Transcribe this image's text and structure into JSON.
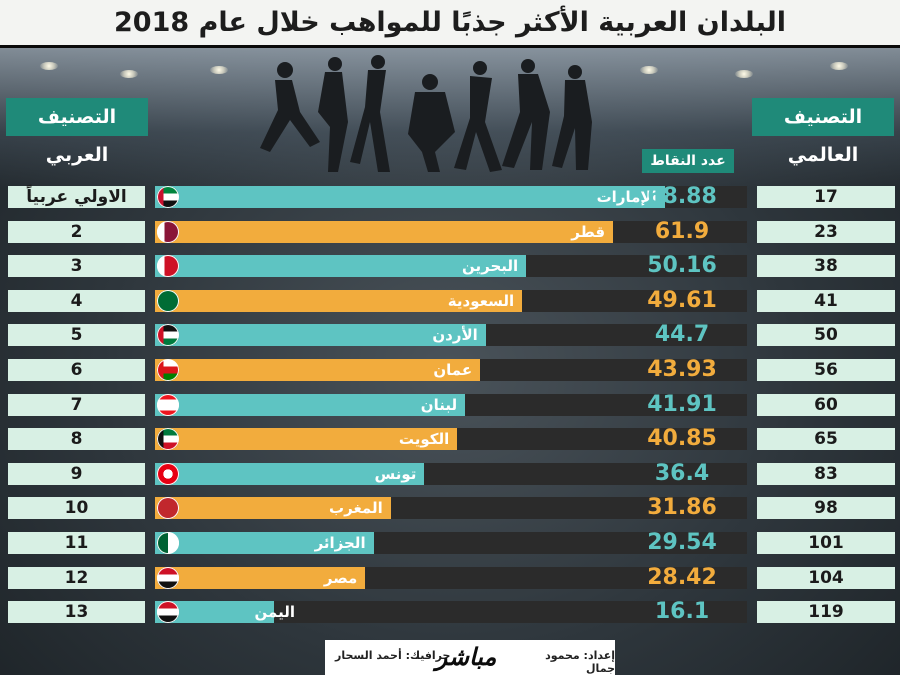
{
  "title": "البلدان العربية الأكثر جذبًا للمواهب خلال عام 2018",
  "banners": {
    "arab_rank": "التصنيف العربي",
    "global_rank": "التصنيف العالمي"
  },
  "points_label": "عدد النقاط",
  "colors": {
    "teal": "#5ec4c2",
    "orange": "#f2ac3d",
    "banner_green": "#1f8a79",
    "rank_box": "#d8f0e4",
    "track": "#2b2b2b"
  },
  "footer": {
    "prepared_by": "إعداد: محمود جمال",
    "graphics_by": "جرافيك: أحمد السحار",
    "brand": "مباشر"
  },
  "chart_data": {
    "type": "bar",
    "orientation": "horizontal",
    "title": "البلدان العربية الأكثر جذبًا للمواهب خلال عام 2018",
    "value_label": "عدد النقاط",
    "xlim": [
      0,
      80
    ],
    "categories": [
      "الإمارات",
      "قطر",
      "البحرين",
      "السعودية",
      "الأردن",
      "عمان",
      "لبنان",
      "الكويت",
      "تونس",
      "المغرب",
      "الجزائر",
      "مصر",
      "اليمن"
    ],
    "values": [
      68.88,
      61.9,
      50.16,
      49.61,
      44.7,
      43.93,
      41.91,
      40.85,
      36.4,
      31.86,
      29.54,
      28.42,
      16.1
    ],
    "value_labels": [
      "68.88",
      "61.9",
      "50.16",
      "49.61",
      "44.7",
      "43.93",
      "41.91",
      "40.85",
      "36.4",
      "31.86",
      "29.54",
      "28.42",
      "16.1"
    ],
    "arab_rank": [
      "الاولي عربياً",
      "2",
      "3",
      "4",
      "5",
      "6",
      "7",
      "8",
      "9",
      "10",
      "11",
      "12",
      "13"
    ],
    "global_rank": [
      "17",
      "23",
      "38",
      "41",
      "50",
      "56",
      "60",
      "65",
      "83",
      "98",
      "101",
      "104",
      "119"
    ],
    "bar_colors": [
      "#5ec4c2",
      "#f2ac3d",
      "#5ec4c2",
      "#f2ac3d",
      "#5ec4c2",
      "#f2ac3d",
      "#5ec4c2",
      "#f2ac3d",
      "#5ec4c2",
      "#f2ac3d",
      "#5ec4c2",
      "#f2ac3d",
      "#5ec4c2"
    ],
    "flags": [
      "uae-flag-icon",
      "qatar-flag-icon",
      "bahrain-flag-icon",
      "saudi-flag-icon",
      "jordan-flag-icon",
      "oman-flag-icon",
      "lebanon-flag-icon",
      "kuwait-flag-icon",
      "tunisia-flag-icon",
      "morocco-flag-icon",
      "algeria-flag-icon",
      "egypt-flag-icon",
      "yemen-flag-icon"
    ]
  }
}
